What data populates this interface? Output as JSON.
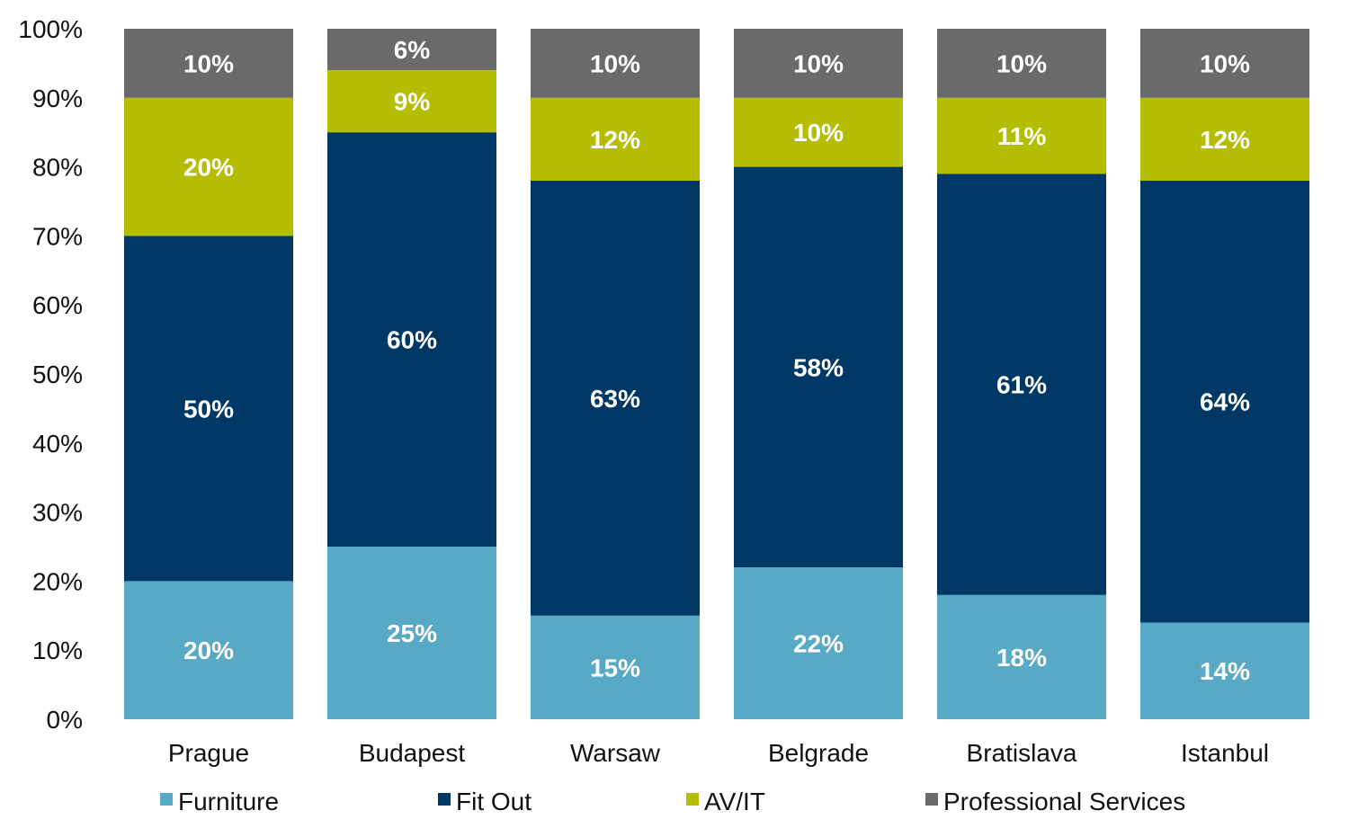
{
  "chart_data": {
    "type": "bar",
    "stacked": true,
    "categories": [
      "Prague",
      "Budapest",
      "Warsaw",
      "Belgrade",
      "Bratislava",
      "Istanbul"
    ],
    "series": [
      {
        "name": "Furniture",
        "color": "#58a9c6",
        "values": [
          20,
          25,
          15,
          22,
          18,
          14
        ],
        "labels": [
          "20%",
          "25%",
          "15%",
          "22%",
          "18%",
          "14%"
        ]
      },
      {
        "name": "Fit Out",
        "color": "#003865",
        "values": [
          50,
          60,
          63,
          58,
          61,
          64
        ],
        "labels": [
          "50%",
          "60%",
          "63%",
          "58%",
          "61%",
          "64%"
        ]
      },
      {
        "name": "AV/IT",
        "color": "#b5bd00",
        "values": [
          20,
          9,
          12,
          10,
          11,
          12
        ],
        "labels": [
          "20%",
          "9%",
          "12%",
          "10%",
          "11%",
          "12%"
        ]
      },
      {
        "name": "Professional Services",
        "color": "#696b6b",
        "values": [
          10,
          6,
          10,
          10,
          10,
          10
        ],
        "labels": [
          "10%",
          "6%",
          "10%",
          "10%",
          "10%",
          "10%"
        ]
      }
    ],
    "ylim": [
      0,
      100
    ],
    "yticks": [
      "0%",
      "10%",
      "20%",
      "30%",
      "40%",
      "50%",
      "60%",
      "70%",
      "80%",
      "90%",
      "100%"
    ],
    "legend_position": "bottom",
    "grid": false,
    "title": "",
    "xlabel": "",
    "ylabel": ""
  }
}
